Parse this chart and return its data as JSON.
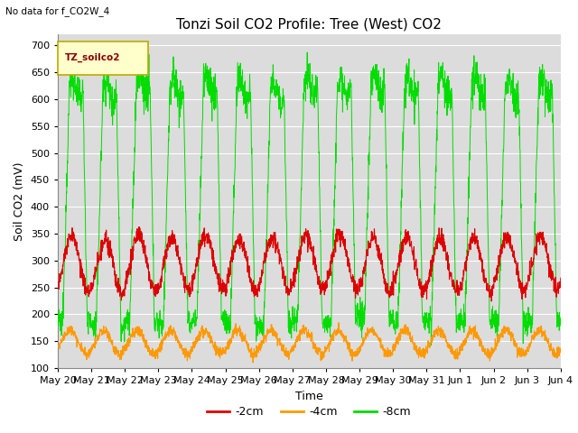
{
  "title": "Tonzi Soil CO2 Profile: Tree (West) CO2",
  "subtitle": "No data for f_CO2W_4",
  "xlabel": "Time",
  "ylabel": "Soil CO2 (mV)",
  "ylim": [
    100,
    720
  ],
  "yticks": [
    100,
    150,
    200,
    250,
    300,
    350,
    400,
    450,
    500,
    550,
    600,
    650,
    700
  ],
  "xtick_labels": [
    "May 20",
    "May 21",
    "May 22",
    "May 23",
    "May 24",
    "May 25",
    "May 26",
    "May 27",
    "May 28",
    "May 29",
    "May 30",
    "May 31",
    "Jun 1",
    "Jun 2",
    "Jun 3",
    "Jun 4"
  ],
  "color_2cm": "#dd0000",
  "color_4cm": "#ff9900",
  "color_8cm": "#00dd00",
  "legend_label_2cm": "-2cm",
  "legend_label_4cm": "-4cm",
  "legend_label_8cm": "-8cm",
  "legend_box_label": "TZ_soilco2",
  "bg_color": "#dcdcdc",
  "fig_bg_color": "#ffffff",
  "grid_color": "#ffffff",
  "title_fontsize": 11,
  "axis_label_fontsize": 9,
  "tick_fontsize": 8
}
